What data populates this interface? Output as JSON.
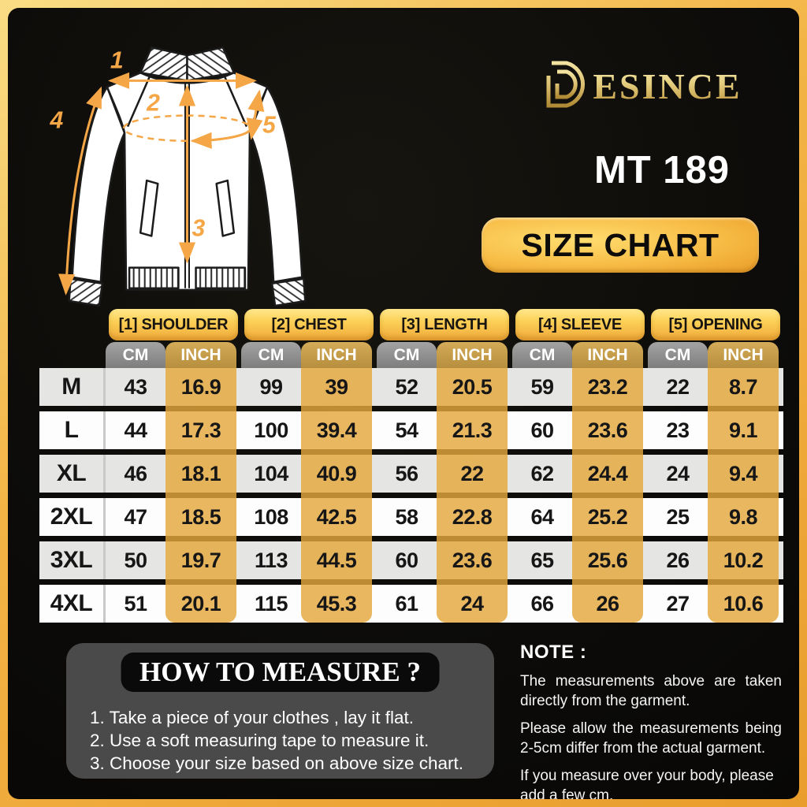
{
  "brand": {
    "name": "DESINCE",
    "wordmark_rest": "ESINCE",
    "gold": "#d9b95f"
  },
  "product_code": "MT 189",
  "size_chart_label": "SIZE CHART",
  "diagram": {
    "labels": [
      "1",
      "2",
      "3",
      "4",
      "5"
    ],
    "arrow_color": "#F5A646"
  },
  "table": {
    "headers": [
      "[1] SHOULDER",
      "[2] CHEST",
      "[3] LENGTH",
      "[4] SLEEVE",
      "[5] OPENING"
    ],
    "unit_headers": {
      "cm": "CM",
      "inch": "INCH"
    },
    "rows": [
      {
        "size": "M",
        "values": [
          "43",
          "16.9",
          "99",
          "39",
          "52",
          "20.5",
          "59",
          "23.2",
          "22",
          "8.7"
        ]
      },
      {
        "size": "L",
        "values": [
          "44",
          "17.3",
          "100",
          "39.4",
          "54",
          "21.3",
          "60",
          "23.6",
          "23",
          "9.1"
        ]
      },
      {
        "size": "XL",
        "values": [
          "46",
          "18.1",
          "104",
          "40.9",
          "56",
          "22",
          "62",
          "24.4",
          "24",
          "9.4"
        ]
      },
      {
        "size": "2XL",
        "values": [
          "47",
          "18.5",
          "108",
          "42.5",
          "58",
          "22.8",
          "64",
          "25.2",
          "25",
          "9.8"
        ]
      },
      {
        "size": "3XL",
        "values": [
          "50",
          "19.7",
          "113",
          "44.5",
          "60",
          "23.6",
          "65",
          "25.6",
          "26",
          "10.2"
        ]
      },
      {
        "size": "4XL",
        "values": [
          "51",
          "20.1",
          "115",
          "45.3",
          "61",
          "24",
          "66",
          "26",
          "27",
          "10.6"
        ]
      }
    ]
  },
  "how_to_measure": {
    "title": "HOW TO MEASURE ?",
    "steps": [
      "1. Take a piece of your clothes , lay it flat.",
      "2. Use a soft measuring tape to measure it.",
      "3. Choose your size based on above size chart."
    ]
  },
  "note": {
    "title": "NOTE :",
    "paragraphs": [
      "The measurements above are taken directly from the garment.",
      "Please allow the measurements being 2-5cm differ from the actual garment.",
      "If you measure over your body, please add a few cm."
    ]
  },
  "colors": {
    "frame_gold": "#f0a83a",
    "background": "#0d0c0a",
    "tab_gold_top": "#ffe88c",
    "tab_gold_bottom": "#efa83a",
    "cm_header_gray": "#8e8e8e",
    "inch_header_tan": "#c49a48",
    "inch_column_tan": "#e7b967",
    "row_gray": "#e5e5e4",
    "row_white": "#fdfdfd"
  }
}
